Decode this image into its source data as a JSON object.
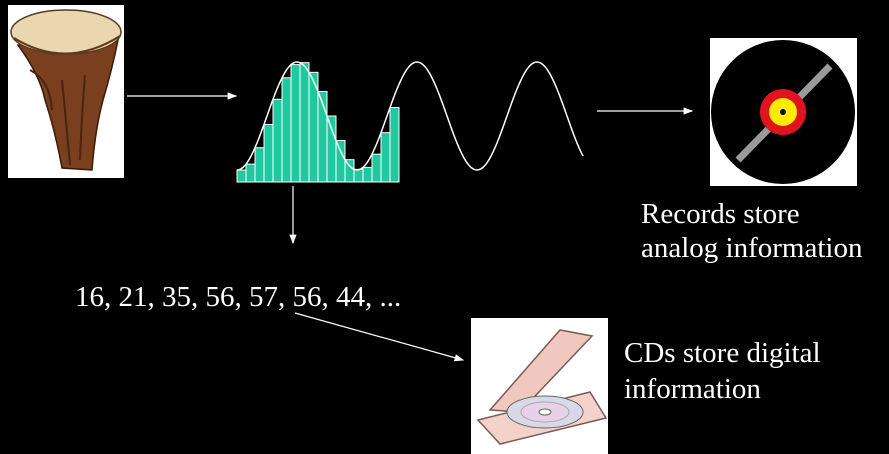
{
  "samples": "16, 21, 35, 56, 57, 56, 44, ...",
  "records_caption": [
    "Records store",
    "analog information"
  ],
  "cds_caption": [
    "CDs store digital",
    "information"
  ]
}
